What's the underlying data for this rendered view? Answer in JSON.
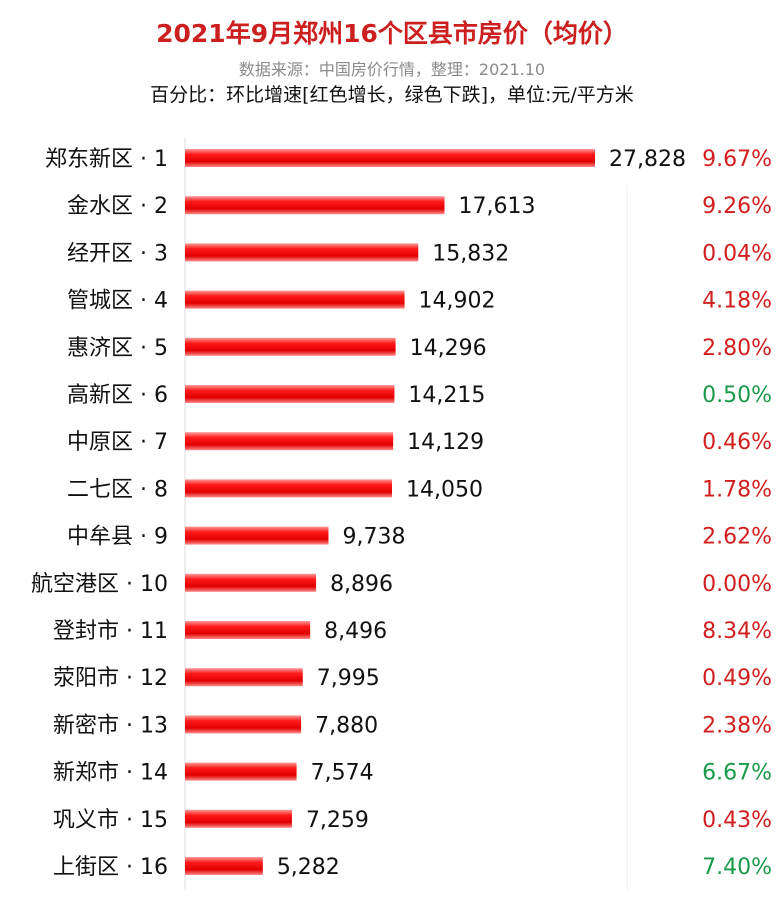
{
  "header": {
    "title": "2021年9月郑州16个区县市房价（均价）",
    "subtitle": "数据来源：中国房价行情，整理：2021.10",
    "note": "百分比：环比增速[红色增长，绿色下跌]，单位:元/平方米"
  },
  "colors": {
    "title": "#cc1f1f",
    "bar": "#e60000",
    "increase": "#d11f1f",
    "decrease": "#1a9a4a"
  },
  "chart_data": {
    "type": "bar",
    "orientation": "horizontal",
    "categories": [
      "郑东新区 · 1",
      "金水区 · 2",
      "经开区 · 3",
      "管城区 · 4",
      "惠济区 · 5",
      "高新区 · 6",
      "中原区 · 7",
      "二七区 · 8",
      "中牟县 · 9",
      "航空港区 · 10",
      "登封市 · 11",
      "荥阳市 · 12",
      "新密市 · 13",
      "新郑市 · 14",
      "巩义市 · 15",
      "上街区 · 16"
    ],
    "values": [
      27828,
      17613,
      15832,
      14902,
      14296,
      14215,
      14129,
      14050,
      9738,
      8896,
      8496,
      7995,
      7880,
      7574,
      7259,
      5282
    ],
    "value_labels": [
      "27,828",
      "17,613",
      "15,832",
      "14,902",
      "14,296",
      "14,215",
      "14,129",
      "14,050",
      "9,738",
      "8,896",
      "8,496",
      "7,995",
      "7,880",
      "7,574",
      "7,259",
      "5,282"
    ],
    "change_labels": [
      "9.67%",
      "9.26%",
      "0.04%",
      "4.18%",
      "2.80%",
      "0.50%",
      "0.46%",
      "1.78%",
      "2.62%",
      "0.00%",
      "8.34%",
      "0.49%",
      "2.38%",
      "6.67%",
      "0.43%",
      "7.40%"
    ],
    "change_direction": [
      "up",
      "up",
      "up",
      "up",
      "up",
      "down",
      "up",
      "up",
      "up",
      "up",
      "up",
      "up",
      "up",
      "down",
      "up",
      "down"
    ],
    "xlim": [
      0,
      27828
    ],
    "grid": false,
    "legend": "none"
  }
}
